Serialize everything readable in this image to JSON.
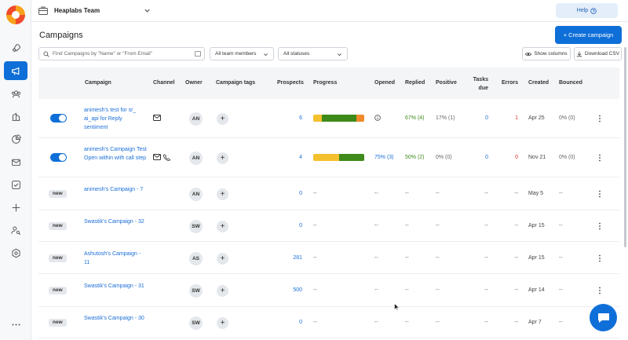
{
  "app": {
    "name": "Heaplabs"
  },
  "sidebar": {
    "items": [
      {
        "icon": "rocket-icon"
      },
      {
        "icon": "megaphone-icon",
        "active": true
      },
      {
        "icon": "users-icon"
      },
      {
        "icon": "building-icon"
      },
      {
        "icon": "pie-chart-icon"
      },
      {
        "icon": "mail-icon"
      },
      {
        "icon": "checkbox-icon"
      },
      {
        "icon": "plus-icon"
      },
      {
        "icon": "user-search-icon"
      },
      {
        "icon": "settings-icon"
      },
      {
        "icon": "more-icon"
      }
    ]
  },
  "header": {
    "team": "Heaplabs Team",
    "help_label": "Help"
  },
  "page": {
    "title": "Campaigns",
    "create_label": "+ Create campaign"
  },
  "filters": {
    "search_placeholder": "Find Campaigns by \"Name\" or \"From Email\"",
    "team_members": "All team members",
    "statuses": "All statuses",
    "show_columns": "Show columns",
    "download_csv": "Download CSV"
  },
  "table": {
    "headers": {
      "campaign": "Campaign",
      "channel": "Channel",
      "owner": "Owner",
      "tags": "Campaign tags",
      "prospects": "Prospects",
      "progress": "Progress",
      "opened": "Opened",
      "replied": "Replied",
      "positive": "Positive",
      "tasks_due": "Tasks due",
      "errors": "Errors",
      "created": "Created",
      "bounced": "Bounced"
    },
    "rows": [
      {
        "status": "toggle",
        "name": "animesh's test for sr_ ai_api for Reply sentiment",
        "channels": [
          "mail"
        ],
        "owner": "AN",
        "prospects": "6",
        "progress": [
          0.17,
          0.67,
          0.16
        ],
        "opened": "",
        "opened_icon": "info",
        "replied": "67% (4)",
        "positive": "17% (1)",
        "tasks": "0",
        "errors": "1",
        "created": "Apr 25",
        "bounced": "0% (0)"
      },
      {
        "status": "toggle",
        "name": "animesh's Campaign Test Open within with call step",
        "channels": [
          "mail",
          "phone"
        ],
        "owner": "AN",
        "prospects": "4",
        "progress": [
          0.5,
          0.5,
          0
        ],
        "opened": "75% (3)",
        "replied": "50% (2)",
        "positive": "0% (0)",
        "tasks": "0",
        "errors": "0",
        "created": "Nov 21",
        "bounced": "0% (0)"
      },
      {
        "status": "new",
        "name": "animesh's Campaign - 7",
        "owner": "AN",
        "prospects": "0",
        "opened": "--",
        "replied": "--",
        "positive": "--",
        "tasks": "--",
        "errors": "--",
        "created": "May 5",
        "bounced": "--"
      },
      {
        "status": "new",
        "name": "Swastik's Campaign - 32",
        "owner": "SW",
        "prospects": "0",
        "opened": "--",
        "replied": "--",
        "positive": "--",
        "tasks": "--",
        "errors": "--",
        "created": "Apr 15",
        "bounced": "--"
      },
      {
        "status": "new",
        "name": "Ashutosh's Campaign - 11",
        "owner": "AS",
        "prospects": "281",
        "opened": "--",
        "replied": "--",
        "positive": "--",
        "tasks": "--",
        "errors": "--",
        "created": "Apr 15",
        "bounced": "--"
      },
      {
        "status": "new",
        "name": "Swastik's Campaign - 31",
        "owner": "SW",
        "prospects": "500",
        "opened": "--",
        "replied": "--",
        "positive": "--",
        "tasks": "--",
        "errors": "--",
        "created": "Apr 14",
        "bounced": "--"
      },
      {
        "status": "new",
        "name": "Swastik's Campaign - 30",
        "owner": "SW",
        "prospects": "0",
        "opened": "--",
        "replied": "--",
        "positive": "--",
        "tasks": "--",
        "errors": "--",
        "created": "Apr 7",
        "bounced": "--"
      }
    ],
    "new_label": "new",
    "progress_empty": "--",
    "colors": {
      "yellow": "#f4c02e",
      "green": "#3e8a1a",
      "orange": "#f08a2c"
    }
  }
}
